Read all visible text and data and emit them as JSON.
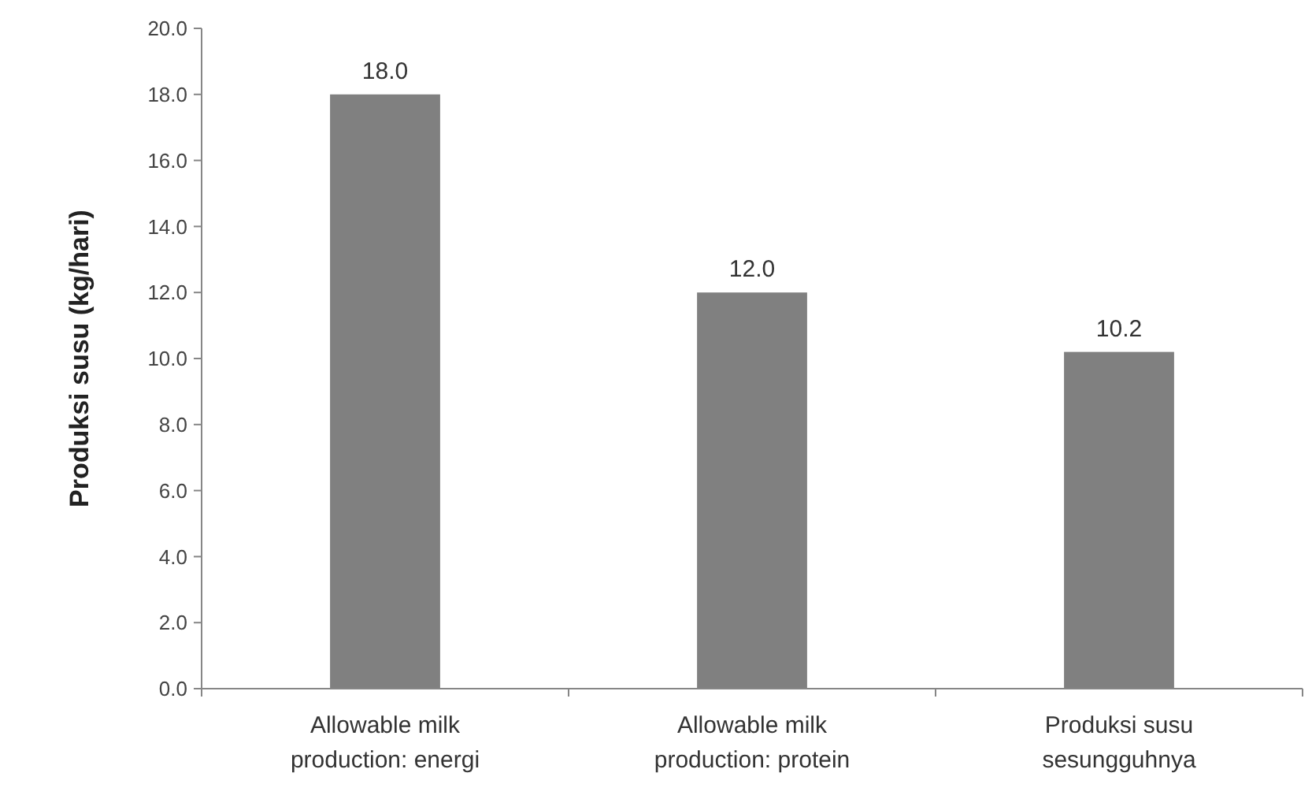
{
  "chart_data": {
    "type": "bar",
    "ylabel": "Produksi susu (kg/hari)",
    "categories": [
      "Allowable milk production: energi",
      "Allowable milk production: protein",
      "Produksi susu sesungguhnya"
    ],
    "values": [
      18.0,
      12.0,
      10.2
    ],
    "color": "#808080",
    "value_labels": [
      "18.0",
      "12.0",
      "10.2"
    ],
    "ylim": [
      0,
      20
    ],
    "yticks": [
      {
        "value": 0,
        "label": "0.0"
      },
      {
        "value": 2,
        "label": "2.0"
      },
      {
        "value": 4,
        "label": "4.0"
      },
      {
        "value": 6,
        "label": "6.0"
      },
      {
        "value": 8,
        "label": "8.0"
      },
      {
        "value": 10,
        "label": "10.0"
      },
      {
        "value": 12,
        "label": "12.0"
      },
      {
        "value": 14,
        "label": "14.0"
      },
      {
        "value": 16,
        "label": "16.0"
      },
      {
        "value": 18,
        "label": "18.0"
      },
      {
        "value": 20,
        "label": "20.0"
      }
    ],
    "grid": false
  }
}
